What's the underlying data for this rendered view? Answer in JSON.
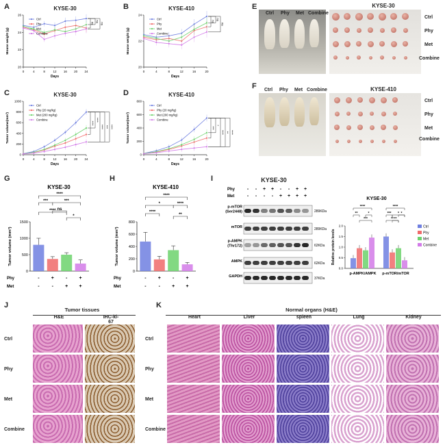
{
  "panels": {
    "A": {
      "letter": "A",
      "title": "KYSE-30",
      "ylabel": "Mouse weight (g)",
      "xlabel": "Days",
      "legend": [
        "Ctrl",
        "Phy",
        "Met",
        "Combine"
      ],
      "sig": [
        "ns",
        "ns",
        "ns"
      ]
    },
    "B": {
      "letter": "B",
      "title": "KYSE-410",
      "ylabel": "Mouse weight (g)",
      "xlabel": "Days",
      "legend": [
        "Ctrl",
        "Phy",
        "Met",
        "Combine"
      ],
      "sig": [
        "ns",
        "ns",
        "ns"
      ]
    },
    "C": {
      "letter": "C",
      "title": "KYSE-30",
      "ylabel": "Tumor volume(mm³)",
      "xlabel": "Days",
      "legend": [
        "Ctrl",
        "Phy (20 mg/kg)",
        "Met (200 mg/kg)",
        "Combine"
      ],
      "sig": [
        "****",
        "****",
        "****",
        "***",
        "****"
      ]
    },
    "D": {
      "letter": "D",
      "title": "KYSE-410",
      "ylabel": "Tumor volume(mm³)",
      "xlabel": "Days",
      "legend": [
        "Ctrl",
        "Phy (20 mg/kg)",
        "Met (200 mg/kg)",
        "Combine"
      ],
      "sig": [
        "***",
        "*",
        "****",
        "**",
        "****"
      ]
    },
    "E": {
      "letter": "E",
      "title": "KYSE-30",
      "rows": [
        "Ctrl",
        "Phy",
        "Met",
        "Combine"
      ],
      "cols": [
        "Ctrl",
        "Phy",
        "Met",
        "Combine"
      ]
    },
    "F": {
      "letter": "F",
      "title": "KYSE-410",
      "rows": [
        "Ctrl",
        "Phy",
        "Met",
        "Combine"
      ],
      "cols": [
        "Ctrl",
        "Phy",
        "Met",
        "Combine"
      ]
    },
    "G": {
      "letter": "G",
      "title": "KYSE-30",
      "ylabel": "Tumor volume (mm³)",
      "row1": "Phy",
      "row2": "Met",
      "signs1": [
        "-",
        "+",
        "-",
        "+"
      ],
      "signs2": [
        "-",
        "-",
        "+",
        "+"
      ],
      "sig": [
        "****",
        "***",
        "***",
        "****",
        "ns",
        "*"
      ]
    },
    "H": {
      "letter": "H",
      "title": "KYSE-410",
      "ylabel": "Tumor volume (mm³)",
      "row1": "Phy",
      "row2": "Met",
      "signs1": [
        "-",
        "+",
        "-",
        "+"
      ],
      "signs2": [
        "-",
        "-",
        "+",
        "+"
      ],
      "sig": [
        "****",
        "*",
        "****",
        "****",
        "**"
      ]
    },
    "I": {
      "letter": "I",
      "title": "KYSE-30",
      "row1": "Phy",
      "row2": "Met",
      "signs1": [
        "-",
        "-",
        "+",
        "+",
        "-",
        "-",
        "+",
        "+"
      ],
      "signs2": [
        "-",
        "-",
        "-",
        "-",
        "+",
        "+",
        "+",
        "+"
      ],
      "proteins": [
        "p-mTOR\n(Ser2448)",
        "mTOR",
        "p-AMPK\n(Thr172)",
        "AMPK",
        "GAPDH"
      ],
      "protein_lines": [
        [
          "p-mTOR",
          "(Ser2448)"
        ],
        [
          "mTOR"
        ],
        [
          "p-AMPK",
          "(Thr172)"
        ],
        [
          "AMPK"
        ],
        [
          "GAPDH"
        ]
      ],
      "sizes": [
        "289KDa",
        "289KDa",
        "62KDa",
        "62KDa",
        "37KDa"
      ],
      "quant_title": "KYSE-30",
      "quant_ylabel": "Relative protein levels",
      "quant_groups": [
        "p-AMPK/AMPK",
        "p-mTOR/mTOR"
      ],
      "quant_legend": [
        "Ctrl",
        "Phy",
        "Met",
        "Combine"
      ],
      "sig": [
        "****",
        "**",
        "*",
        "***",
        "****",
        "***",
        "*",
        "**",
        "**",
        "*"
      ]
    },
    "J": {
      "letter": "J",
      "title": "Tumor tissues",
      "cols": [
        "H&E",
        "IHC-ki-67"
      ],
      "rows": [
        "Ctrl",
        "Phy",
        "Met",
        "Combine"
      ]
    },
    "K": {
      "letter": "K",
      "title": "Normal organs (H&E)",
      "cols": [
        "Heart",
        "Liver",
        "spleen",
        "Lung",
        "Kidney"
      ],
      "rows": [
        "Ctrl",
        "Phy",
        "Met",
        "Combine"
      ]
    }
  },
  "colors": {
    "ctrl": "#6f7fe0",
    "phy": "#f06a6a",
    "met": "#6cd26c",
    "combine": "#d27ae8"
  },
  "chart_data": [
    {
      "panel": "A",
      "type": "line",
      "title": "KYSE-30",
      "xlabel": "Days",
      "ylabel": "Mouse weight (g)",
      "x": [
        0,
        4,
        8,
        12,
        16,
        20,
        24
      ],
      "xlim": [
        0,
        24
      ],
      "ylim": [
        20,
        26
      ],
      "series": [
        {
          "name": "Ctrl",
          "values": [
            24.8,
            24.6,
            25.0,
            24.8,
            25.3,
            25.4,
            25.6
          ]
        },
        {
          "name": "Phy",
          "values": [
            24.6,
            24.3,
            23.8,
            24.2,
            24.6,
            24.8,
            24.5
          ]
        },
        {
          "name": "Met",
          "values": [
            24.7,
            24.4,
            24.0,
            24.3,
            24.1,
            24.4,
            24.9
          ]
        },
        {
          "name": "Combine",
          "values": [
            24.5,
            24.2,
            23.2,
            23.6,
            23.9,
            24.1,
            24.4
          ]
        }
      ]
    },
    {
      "panel": "B",
      "type": "line",
      "title": "KYSE-410",
      "xlabel": "Days",
      "ylabel": "Mouse weight (g)",
      "x": [
        0,
        4,
        8,
        12,
        16,
        20
      ],
      "xlim": [
        0,
        20
      ],
      "ylim": [
        20,
        24
      ],
      "series": [
        {
          "name": "Ctrl",
          "values": [
            22.5,
            22.3,
            22.4,
            22.6,
            23.3,
            23.9
          ]
        },
        {
          "name": "Phy",
          "values": [
            22.3,
            22.1,
            22.2,
            22.0,
            22.8,
            23.1
          ]
        },
        {
          "name": "Met",
          "values": [
            22.4,
            22.2,
            22.0,
            22.3,
            22.9,
            23.4
          ]
        },
        {
          "name": "Combine",
          "values": [
            22.2,
            21.9,
            21.8,
            21.7,
            22.3,
            22.7
          ]
        }
      ]
    },
    {
      "panel": "C",
      "type": "line",
      "title": "KYSE-30",
      "xlabel": "Days",
      "ylabel": "Tumor volume(mm³)",
      "x": [
        0,
        4,
        8,
        12,
        16,
        20,
        24
      ],
      "xlim": [
        0,
        24
      ],
      "ylim": [
        0,
        1000
      ],
      "series": [
        {
          "name": "Ctrl",
          "values": [
            20,
            60,
            150,
            270,
            420,
            600,
            800
          ]
        },
        {
          "name": "Phy (20 mg/kg)",
          "values": [
            18,
            40,
            90,
            160,
            220,
            300,
            380
          ]
        },
        {
          "name": "Met (200 mg/kg)",
          "values": [
            18,
            45,
            100,
            180,
            270,
            380,
            500
          ]
        },
        {
          "name": "Combine",
          "values": [
            15,
            30,
            60,
            100,
            140,
            190,
            240
          ]
        }
      ]
    },
    {
      "panel": "D",
      "type": "line",
      "title": "KYSE-410",
      "xlabel": "Days",
      "ylabel": "Tumor volume(mm³)",
      "x": [
        0,
        4,
        8,
        12,
        16,
        20
      ],
      "xlim": [
        0,
        20
      ],
      "ylim": [
        0,
        800
      ],
      "series": [
        {
          "name": "Ctrl",
          "values": [
            20,
            60,
            120,
            220,
            380,
            550
          ]
        },
        {
          "name": "Phy (20 mg/kg)",
          "values": [
            18,
            40,
            80,
            130,
            190,
            250
          ]
        },
        {
          "name": "Met (200 mg/kg)",
          "values": [
            18,
            45,
            90,
            150,
            230,
            330
          ]
        },
        {
          "name": "Combine",
          "values": [
            15,
            30,
            55,
            80,
            100,
            120
          ]
        }
      ]
    },
    {
      "panel": "G",
      "type": "bar",
      "title": "KYSE-30",
      "ylabel": "Tumor volume (mm³)",
      "categories": [
        "Ctrl",
        "Phy",
        "Met",
        "Combine"
      ],
      "values": [
        800,
        370,
        500,
        230
      ],
      "errors": [
        200,
        70,
        60,
        110
      ],
      "ylim": [
        0,
        1500
      ],
      "yticks": [
        0,
        500,
        1000,
        1500
      ]
    },
    {
      "panel": "H",
      "type": "bar",
      "title": "KYSE-410",
      "ylabel": "Tumor volume (mm³)",
      "categories": [
        "Ctrl",
        "Phy",
        "Met",
        "Combine"
      ],
      "values": [
        480,
        190,
        340,
        110
      ],
      "errors": [
        150,
        50,
        70,
        30
      ],
      "ylim": [
        0,
        800
      ],
      "yticks": [
        0,
        200,
        400,
        600,
        800
      ]
    },
    {
      "panel": "I",
      "type": "bar",
      "title": "KYSE-30",
      "ylabel": "Relative protein levels",
      "categories": [
        "p-AMPK/AMPK",
        "p-mTOR/mTOR"
      ],
      "ylim": [
        0,
        2.0
      ],
      "yticks": [
        0,
        0.5,
        1.0,
        1.5,
        2.0
      ],
      "series": [
        {
          "name": "Ctrl",
          "values": [
            0.48,
            1.5
          ]
        },
        {
          "name": "Phy",
          "values": [
            0.95,
            0.75
          ]
        },
        {
          "name": "Met",
          "values": [
            0.85,
            0.95
          ]
        },
        {
          "name": "Combine",
          "values": [
            1.45,
            0.38
          ]
        }
      ]
    }
  ]
}
